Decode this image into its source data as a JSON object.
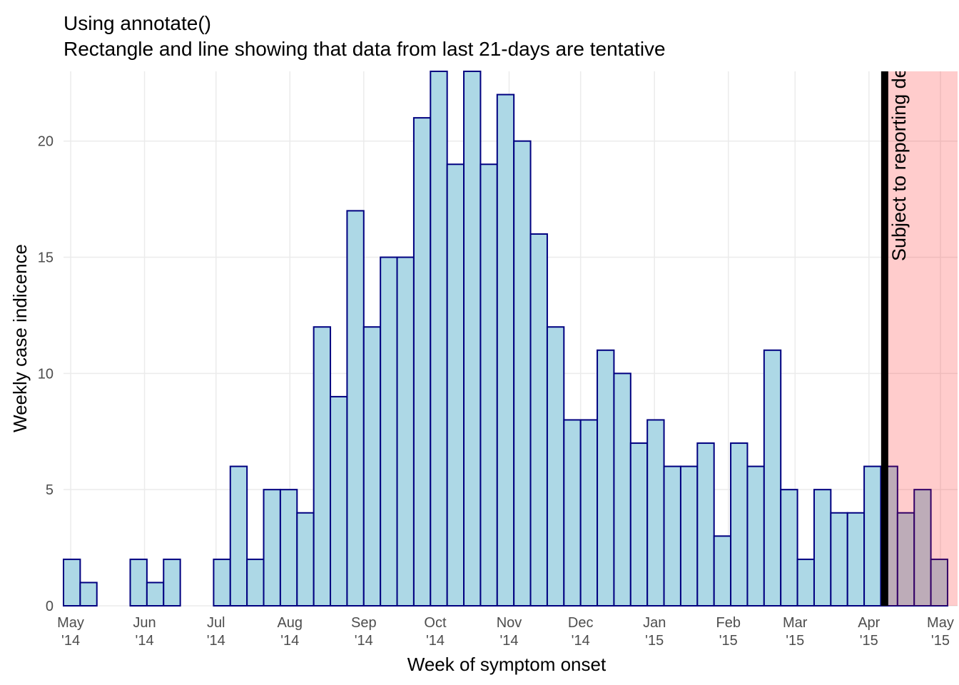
{
  "chart_data": {
    "type": "histogram",
    "title": "Using annotate()",
    "subtitle": "Rectangle and line showing that data from last 21-days are tentative",
    "x_label": "Week of symptom onset",
    "y_label": "Weekly case indicence",
    "bins": [
      0,
      1,
      2,
      3,
      4,
      5,
      6,
      7,
      8,
      9,
      10,
      11,
      12,
      13,
      14,
      15,
      16,
      17,
      18,
      19,
      20,
      21,
      22,
      23,
      24,
      25,
      26,
      27,
      28,
      29,
      30,
      31,
      32,
      33,
      34,
      35,
      36,
      37,
      38,
      39,
      40,
      41,
      42,
      43,
      44,
      45,
      46,
      47,
      48,
      49,
      50,
      51,
      52,
      53
    ],
    "values": [
      2,
      1,
      0,
      0,
      2,
      1,
      2,
      0,
      0,
      2,
      6,
      2,
      5,
      5,
      4,
      12,
      9,
      17,
      12,
      15,
      15,
      21,
      23,
      19,
      23,
      19,
      22,
      20,
      16,
      12,
      8,
      8,
      11,
      10,
      7,
      8,
      6,
      6,
      7,
      3,
      7,
      6,
      11,
      5,
      2,
      5,
      4,
      4,
      6,
      6,
      4,
      5,
      2
    ],
    "color": "#add8e6",
    "edge_color": "#000080",
    "xlim": [
      0,
      53.6
    ],
    "ylim": [
      0,
      23
    ],
    "yticks": [
      0,
      5,
      10,
      15,
      20
    ],
    "xticks": [
      {
        "value": 0.43,
        "label": "May\n'14"
      },
      {
        "value": 4.857,
        "label": "Jun\n'14"
      },
      {
        "value": 9.143,
        "label": "Jul\n'14"
      },
      {
        "value": 13.571,
        "label": "Aug\n'14"
      },
      {
        "value": 18,
        "label": "Sep\n'14"
      },
      {
        "value": 22.286,
        "label": "Oct\n'14"
      },
      {
        "value": 26.714,
        "label": "Nov\n'14"
      },
      {
        "value": 31,
        "label": "Dec\n'14"
      },
      {
        "value": 35.429,
        "label": "Jan\n'15"
      },
      {
        "value": 39.857,
        "label": "Feb\n'15"
      },
      {
        "value": 43.857,
        "label": "Mar\n'15"
      },
      {
        "value": 48.286,
        "label": "Apr\n'15"
      },
      {
        "value": 52.571,
        "label": "May\n'15"
      }
    ],
    "grid": true,
    "annotation": {
      "text": "Subject to reporting delays",
      "line_x": 49.23,
      "rect_xmin": 49.23,
      "rect_color": "#ff0000",
      "line_color": "#000000"
    }
  }
}
